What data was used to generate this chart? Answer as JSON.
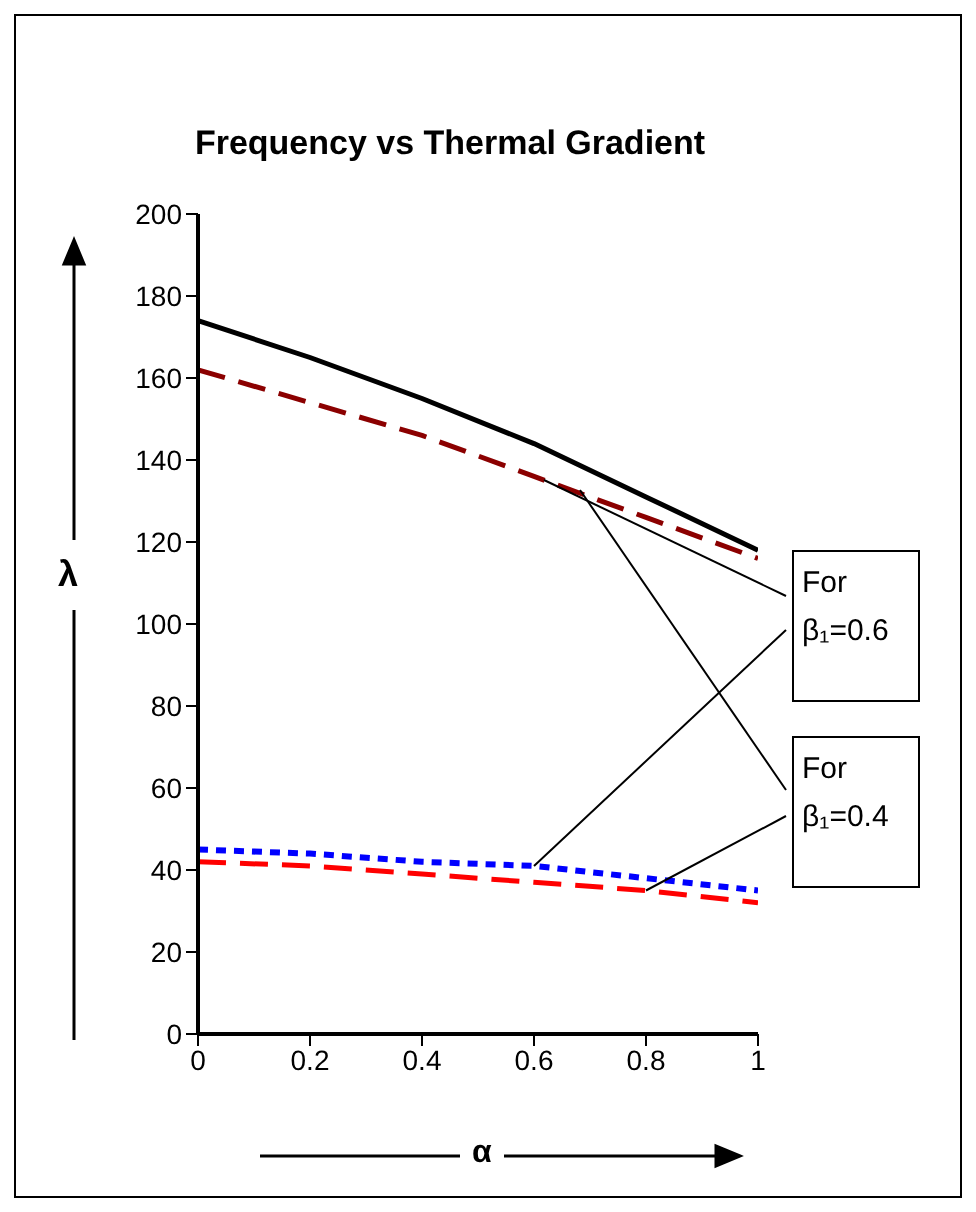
{
  "chart_data": {
    "type": "line",
    "title": "Frequency vs Thermal Gradient",
    "xlabel": "α",
    "ylabel": "λ",
    "x": [
      0,
      0.2,
      0.4,
      0.6,
      0.8,
      1
    ],
    "series": [
      {
        "color": "#000000",
        "line_style": "solid",
        "values": [
          174,
          165,
          155,
          144,
          131,
          118
        ]
      },
      {
        "color": "#8b0000",
        "line_style": "dashed",
        "values": [
          162,
          154,
          146,
          136,
          126,
          116
        ]
      },
      {
        "color": "#0000ff",
        "line_style": "dotted",
        "values": [
          45,
          44,
          42,
          41,
          38,
          35
        ]
      },
      {
        "color": "#ff0000",
        "line_style": "dashed",
        "values": [
          42,
          41,
          39,
          37,
          35,
          32
        ]
      }
    ],
    "xlim": [
      0,
      1
    ],
    "xticks": [
      0,
      0.2,
      0.4,
      0.6,
      0.8,
      1
    ],
    "ylim": [
      0,
      200
    ],
    "yticks": [
      0,
      20,
      40,
      60,
      80,
      100,
      120,
      140,
      160,
      180,
      200
    ],
    "grid": false,
    "legend": false,
    "marker": "none",
    "annotations": [
      {
        "text": "For β₁=0.6",
        "x": 0.6,
        "y": 41
      },
      {
        "text": "For β₁=0.4",
        "x": 0.8,
        "y": 35
      }
    ]
  }
}
